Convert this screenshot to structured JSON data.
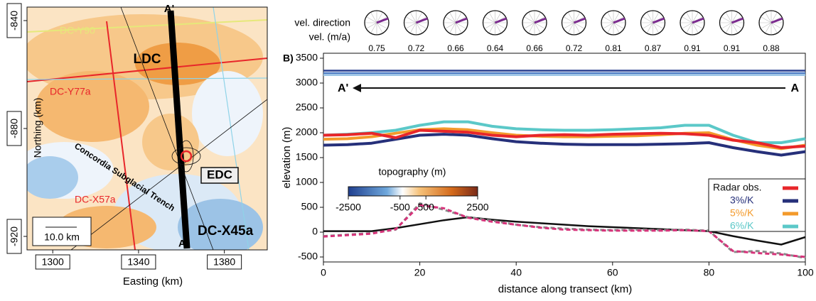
{
  "map": {
    "ylabel": "Northing (km)",
    "xlabel": "Easting (km)",
    "xlim": [
      1288,
      1400
    ],
    "xticks": [
      1300,
      1340,
      1380
    ],
    "ylim": [
      -835,
      -925
    ],
    "yticks": [
      -840,
      -880,
      -920
    ],
    "labels": {
      "a_prime": "A'",
      "a": "A",
      "ldc": "LDC",
      "edc": "EDC",
      "y77a": "DC-Y77a",
      "y90": "DC-Y90",
      "x57a": "DC-X57a",
      "x45a": "DC-X45a",
      "trench": "Concordia Subglacial Trench",
      "scale": "10.0 km"
    }
  },
  "velocity": {
    "direction_label": "vel. direction",
    "speed_label": "vel. (m/a)",
    "values": [
      0.75,
      0.72,
      0.66,
      0.64,
      0.66,
      0.72,
      0.81,
      0.87,
      0.91,
      0.91,
      0.88
    ]
  },
  "chart_data": {
    "type": "line",
    "panel": "B)",
    "xlabel": "distance along transect (km)",
    "ylabel": "elevation (m)",
    "xlim": [
      0,
      100
    ],
    "xticks": [
      0,
      20,
      40,
      60,
      80,
      100
    ],
    "ylim": [
      -600,
      3600
    ],
    "yticks": [
      -500,
      0,
      500,
      1000,
      1500,
      2000,
      2500,
      3000,
      3500
    ],
    "legend": "right",
    "arrow_start": "A'",
    "arrow_end": "A",
    "x": [
      0,
      5,
      10,
      15,
      20,
      25,
      30,
      35,
      40,
      45,
      50,
      55,
      60,
      65,
      70,
      75,
      80,
      85,
      90,
      95,
      100
    ],
    "series": [
      {
        "color": "#2a3f8f",
        "values": [
          3250,
          3250,
          3250,
          3250,
          3250,
          3250,
          3250,
          3250,
          3250,
          3250,
          3250,
          3250,
          3250,
          3250,
          3250,
          3250,
          3250,
          3250,
          3250,
          3250,
          3250
        ]
      },
      {
        "color": "#4f7fc6",
        "values": [
          3200,
          3200,
          3200,
          3200,
          3200,
          3200,
          3200,
          3200,
          3200,
          3200,
          3200,
          3200,
          3200,
          3200,
          3200,
          3200,
          3200,
          3200,
          3200,
          3200,
          3200
        ]
      },
      {
        "color": "#9cc5e6",
        "values": [
          3160,
          3160,
          3160,
          3160,
          3160,
          3160,
          3160,
          3160,
          3160,
          3160,
          3160,
          3160,
          3160,
          3160,
          3160,
          3160,
          3160,
          3160,
          3160,
          3160,
          3160
        ]
      },
      {
        "name": "6%/K",
        "color": "#5bc8c8",
        "values": [
          1950,
          1970,
          2000,
          2050,
          2150,
          2220,
          2220,
          2130,
          2080,
          2060,
          2050,
          2050,
          2060,
          2080,
          2100,
          2150,
          2150,
          1950,
          1800,
          1800,
          1880
        ]
      },
      {
        "name": "5%/K",
        "color": "#f39a2b",
        "values": [
          1870,
          1880,
          1920,
          1990,
          2060,
          2080,
          2060,
          2000,
          1950,
          1930,
          1920,
          1920,
          1930,
          1940,
          1960,
          1990,
          2000,
          1860,
          1750,
          1680,
          1750
        ]
      },
      {
        "name": "3%/K",
        "color": "#26307a",
        "values": [
          1750,
          1760,
          1790,
          1870,
          1950,
          1970,
          1950,
          1880,
          1820,
          1790,
          1770,
          1760,
          1760,
          1760,
          1770,
          1780,
          1800,
          1700,
          1620,
          1550,
          1620
        ]
      },
      {
        "name": "Radar obs.",
        "color": "#e8262a",
        "values": [
          1950,
          1960,
          1990,
          1900,
          2050,
          2030,
          2010,
          1950,
          1920,
          1950,
          1960,
          1950,
          1970,
          1980,
          1990,
          1980,
          1950,
          1850,
          1800,
          1700,
          1730
        ]
      },
      {
        "color": "#111111",
        "values": [
          20,
          20,
          20,
          80,
          160,
          240,
          300,
          250,
          210,
          180,
          150,
          120,
          100,
          80,
          60,
          40,
          20,
          -80,
          -170,
          -250,
          -100
        ]
      },
      {
        "color": "#8a8a8a",
        "dash": true,
        "values": [
          -80,
          -50,
          -20,
          50,
          580,
          450,
          300,
          230,
          150,
          100,
          70,
          50,
          40,
          50,
          40,
          50,
          30,
          -400,
          -380,
          -430,
          -520
        ]
      },
      {
        "color": "#d6337a",
        "dash": true,
        "values": [
          -90,
          -60,
          -30,
          60,
          540,
          480,
          290,
          210,
          150,
          90,
          50,
          40,
          30,
          30,
          30,
          40,
          20,
          -380,
          -420,
          -450,
          -500
        ]
      }
    ],
    "colorbar": {
      "label": "topography (m)",
      "lim": [
        -2500,
        2500
      ],
      "ticks": [
        -2500,
        -500,
        500,
        2500
      ]
    }
  }
}
